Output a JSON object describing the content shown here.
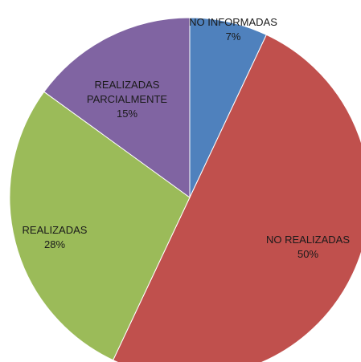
{
  "chart_data": {
    "type": "pie",
    "categories": [
      "NO INFORMADAS",
      "NO REALIZADAS",
      "REALIZADAS",
      "REALIZADAS PARCIALMENTE"
    ],
    "values": [
      7,
      50,
      28,
      15
    ],
    "value_labels": [
      "7%",
      "50%",
      "28%",
      "15%"
    ],
    "colors": [
      "#4f81bd",
      "#c0504d",
      "#9bbb59",
      "#8064a2"
    ]
  }
}
